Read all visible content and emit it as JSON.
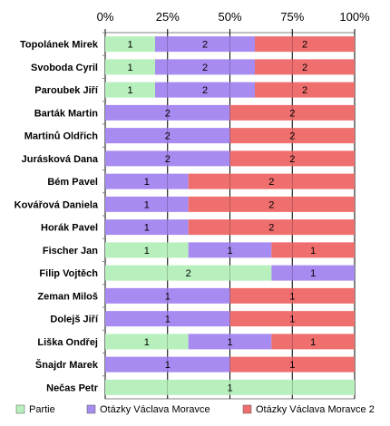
{
  "chart_data": {
    "type": "bar",
    "orientation": "horizontal",
    "stacked": "percent",
    "categories": [
      "Topolánek Mirek",
      "Svoboda Cyril",
      "Paroubek Jiří",
      "Barták Martin",
      "Martinů Oldřich",
      "Jurásková Dana",
      "Bém Pavel",
      "Kovářová Daniela",
      "Horák Pavel",
      "Fischer Jan",
      "Filip Vojtěch",
      "Zeman Miloš",
      "Dolejš Jiří",
      "Liška Ondřej",
      "Šnajdr Marek",
      "Nečas Petr"
    ],
    "series": [
      {
        "name": "Partie",
        "color": "#b8f0bd",
        "values": [
          1,
          1,
          1,
          0,
          0,
          0,
          0,
          0,
          0,
          1,
          2,
          0,
          0,
          1,
          0,
          1
        ]
      },
      {
        "name": "Otázky Václava Moravce",
        "color": "#a78bf0",
        "values": [
          2,
          2,
          2,
          2,
          2,
          2,
          1,
          1,
          1,
          1,
          1,
          1,
          1,
          1,
          1,
          0
        ]
      },
      {
        "name": "Otázky Václava Moravce 2",
        "color": "#ef6f6f",
        "values": [
          2,
          2,
          2,
          2,
          2,
          2,
          2,
          2,
          2,
          1,
          0,
          1,
          1,
          1,
          1,
          0
        ]
      }
    ],
    "x_ticks": [
      "0%",
      "25%",
      "50%",
      "75%",
      "100%"
    ],
    "xlim": [
      0,
      100
    ],
    "x_axis_position": "top",
    "grid": true,
    "legend": "bottom",
    "title": "",
    "xlabel": "",
    "ylabel": ""
  }
}
